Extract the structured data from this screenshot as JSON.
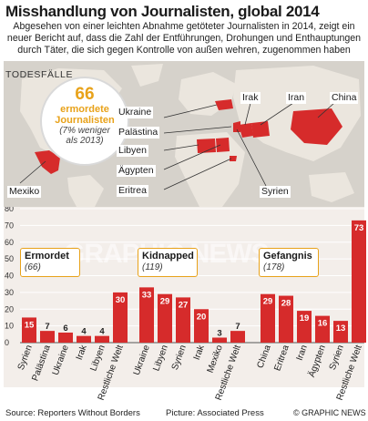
{
  "title": "Misshandlung von Journalisten, global 2014",
  "intro": "Abgesehen von einer leichten Abnahme getöteter Journalisten in 2014, zeigt ein neuer Bericht auf, dass die Zahl der Entführungen, Drohungen und Enthauptungen durch Täter, die sich gegen Kontrolle von außen wehren, zugenommen haben",
  "map": {
    "todesfaelle_label": "TODESFÄLLE",
    "badge": {
      "number": "66",
      "line1": "ermordete",
      "line2": "Journalisten",
      "line3": "(7% weniger",
      "line4": "als 2013)"
    },
    "labels": {
      "ukraine": "Ukraine",
      "irak": "Irak",
      "iran": "Iran",
      "china": "China",
      "palaestina": "Palästina",
      "libyen": "Libyen",
      "aegypten": "Ägypten",
      "eritrea": "Eritrea",
      "syrien": "Syrien",
      "mexiko": "Mexiko"
    },
    "colors": {
      "highlight": "#d62b2b",
      "land": "#ebe6de",
      "sea": "#d6d2cb"
    }
  },
  "chart_data": {
    "type": "bar",
    "ylim": [
      0,
      80
    ],
    "yticks": [
      0,
      10,
      20,
      30,
      40,
      50,
      60,
      70,
      80
    ],
    "bar_color": "#d62b2b",
    "groups": [
      {
        "name": "Ermordet",
        "count": "(66)",
        "categories": [
          "Syrien",
          "Palästina",
          "Ukraine",
          "Irak",
          "Libyen",
          "Restliche Welt"
        ],
        "values": [
          15,
          7,
          6,
          4,
          4,
          30
        ]
      },
      {
        "name": "Kidnapped",
        "count": "(119)",
        "categories": [
          "Ukraine",
          "Libyen",
          "Syrien",
          "Irak",
          "Mexiko",
          "Restliche Welt"
        ],
        "values": [
          33,
          29,
          27,
          20,
          3,
          7
        ]
      },
      {
        "name": "Gefangnis",
        "count": "(178)",
        "categories": [
          "China",
          "Eritrea",
          "Iran",
          "Ägypten",
          "Syrien",
          "Restliche Welt"
        ],
        "values": [
          29,
          28,
          19,
          16,
          13,
          73
        ]
      }
    ]
  },
  "source": "Source: Reporters Without Borders",
  "picture": "Picture: Associated Press",
  "credit": "© GRAPHIC NEWS"
}
